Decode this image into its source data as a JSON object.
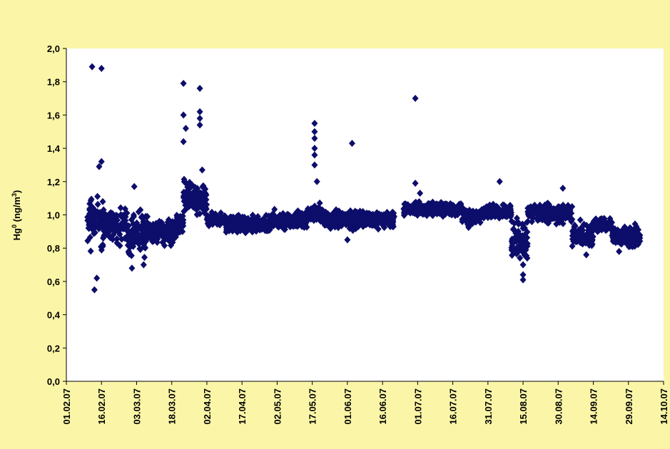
{
  "colors": {
    "frame_bg": "#fbf6a7",
    "plot_bg": "#ffffff",
    "marker": "#0d0d6b",
    "axis": "#000000"
  },
  "chart_data": {
    "type": "scatter",
    "title": "",
    "xlabel": "",
    "ylabel": "Hg⁰ (ng/m³)",
    "ylabel_base": "Hg",
    "ylabel_sup": "0",
    "ylabel_unit": " (ng/m",
    "ylabel_unit_sup": "3",
    "ylabel_close": ")",
    "grid": false,
    "legend": "none",
    "marker": "diamond",
    "xlim": [
      "2007-02-01",
      "2007-10-14"
    ],
    "ylim": [
      0,
      2.0
    ],
    "x_ticks": [
      "01.02.07",
      "16.02.07",
      "03.03.07",
      "18.03.07",
      "02.04.07",
      "17.04.07",
      "02.05.07",
      "17.05.07",
      "01.06.07",
      "16.06.07",
      "01.07.07",
      "16.07.07",
      "31.07.07",
      "15.08.07",
      "30.08.07",
      "14.09.07",
      "29.09.07",
      "14.10.07"
    ],
    "y_ticks": [
      "0,0",
      "0,2",
      "0,4",
      "0,6",
      "0,8",
      "1,0",
      "1,2",
      "1,4",
      "1,6",
      "1,8",
      "2,0"
    ],
    "outliers": [
      {
        "x": "2007-02-12",
        "y": 1.89
      },
      {
        "x": "2007-02-16",
        "y": 1.88
      },
      {
        "x": "2007-02-13",
        "y": 0.55
      },
      {
        "x": "2007-02-14",
        "y": 0.62
      },
      {
        "x": "2007-02-16",
        "y": 1.32
      },
      {
        "x": "2007-02-15",
        "y": 1.29
      },
      {
        "x": "2007-03-02",
        "y": 1.17
      },
      {
        "x": "2007-03-01",
        "y": 0.68
      },
      {
        "x": "2007-03-06",
        "y": 0.7
      },
      {
        "x": "2007-03-23",
        "y": 1.79
      },
      {
        "x": "2007-03-23",
        "y": 1.6
      },
      {
        "x": "2007-03-24",
        "y": 1.52
      },
      {
        "x": "2007-03-23",
        "y": 1.44
      },
      {
        "x": "2007-03-30",
        "y": 1.76
      },
      {
        "x": "2007-03-30",
        "y": 1.62
      },
      {
        "x": "2007-03-30",
        "y": 1.58
      },
      {
        "x": "2007-03-30",
        "y": 1.54
      },
      {
        "x": "2007-03-31",
        "y": 1.27
      },
      {
        "x": "2007-05-18",
        "y": 1.55
      },
      {
        "x": "2007-05-18",
        "y": 1.5
      },
      {
        "x": "2007-05-18",
        "y": 1.46
      },
      {
        "x": "2007-05-18",
        "y": 1.4
      },
      {
        "x": "2007-05-18",
        "y": 1.36
      },
      {
        "x": "2007-05-18",
        "y": 1.3
      },
      {
        "x": "2007-05-19",
        "y": 1.2
      },
      {
        "x": "2007-06-03",
        "y": 1.43
      },
      {
        "x": "2007-06-01",
        "y": 0.85
      },
      {
        "x": "2007-06-30",
        "y": 1.7
      },
      {
        "x": "2007-06-30",
        "y": 1.19
      },
      {
        "x": "2007-07-02",
        "y": 1.13
      },
      {
        "x": "2007-08-05",
        "y": 1.2
      },
      {
        "x": "2007-08-15",
        "y": 0.61
      },
      {
        "x": "2007-08-15",
        "y": 0.64
      },
      {
        "x": "2007-08-15",
        "y": 0.7
      },
      {
        "x": "2007-09-01",
        "y": 1.16
      },
      {
        "x": "2007-09-11",
        "y": 0.76
      },
      {
        "x": "2007-09-25",
        "y": 0.78
      }
    ],
    "series": [
      {
        "segments": [
          {
            "x0": "2007-02-10",
            "x1": "2007-02-17",
            "y": [
              0.75,
              1.15
            ]
          },
          {
            "x0": "2007-02-17",
            "x1": "2007-02-27",
            "y": [
              0.8,
              1.08
            ]
          },
          {
            "x0": "2007-02-27",
            "x1": "2007-03-07",
            "y": [
              0.72,
              1.05
            ]
          },
          {
            "x0": "2007-03-07",
            "x1": "2007-03-20",
            "y": [
              0.8,
              1.0
            ]
          },
          {
            "x0": "2007-03-20",
            "x1": "2007-03-23",
            "y": [
              0.86,
              1.02
            ]
          },
          {
            "x0": "2007-03-23",
            "x1": "2007-03-28",
            "y": [
              0.98,
              1.25
            ]
          },
          {
            "x0": "2007-03-28",
            "x1": "2007-04-02",
            "y": [
              0.97,
              1.22
            ]
          },
          {
            "x0": "2007-04-02",
            "x1": "2007-04-10",
            "y": [
              0.92,
              1.03
            ]
          },
          {
            "x0": "2007-04-10",
            "x1": "2007-04-30",
            "y": [
              0.88,
              1.01
            ]
          },
          {
            "x0": "2007-04-30",
            "x1": "2007-05-15",
            "y": [
              0.9,
              1.04
            ]
          },
          {
            "x0": "2007-05-15",
            "x1": "2007-05-22",
            "y": [
              0.92,
              1.08
            ]
          },
          {
            "x0": "2007-05-22",
            "x1": "2007-06-21",
            "y": [
              0.9,
              1.04
            ]
          },
          {
            "x0": "2007-06-25",
            "x1": "2007-07-20",
            "y": [
              0.98,
              1.09
            ]
          },
          {
            "x0": "2007-07-20",
            "x1": "2007-07-28",
            "y": [
              0.92,
              1.06
            ]
          },
          {
            "x0": "2007-07-28",
            "x1": "2007-08-10",
            "y": [
              0.97,
              1.07
            ]
          },
          {
            "x0": "2007-08-10",
            "x1": "2007-08-17",
            "y": [
              0.66,
              1.05
            ]
          },
          {
            "x0": "2007-08-17",
            "x1": "2007-09-05",
            "y": [
              0.93,
              1.09
            ]
          },
          {
            "x0": "2007-09-05",
            "x1": "2007-09-14",
            "y": [
              0.78,
              0.98
            ]
          },
          {
            "x0": "2007-09-14",
            "x1": "2007-09-22",
            "y": [
              0.88,
              1.0
            ]
          },
          {
            "x0": "2007-09-22",
            "x1": "2007-10-04",
            "y": [
              0.79,
              0.96
            ]
          }
        ]
      }
    ]
  }
}
